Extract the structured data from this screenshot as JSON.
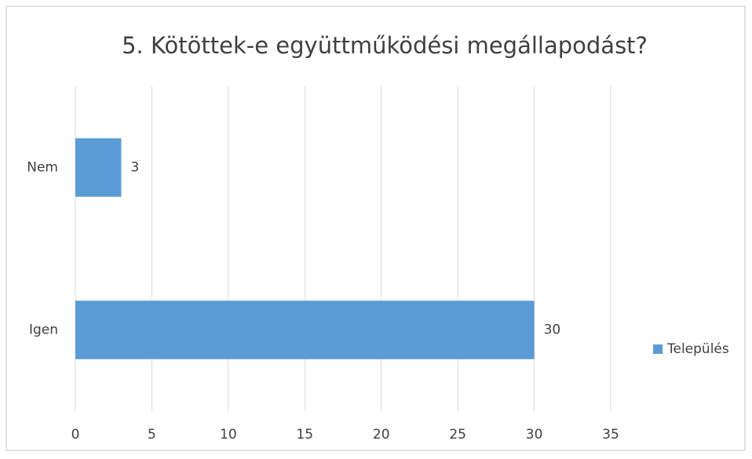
{
  "chart_data": {
    "type": "bar",
    "orientation": "horizontal",
    "title": "5. Kötöttek-e együttműködési megállapodást?",
    "categories": [
      "Nem",
      "Igen"
    ],
    "series": [
      {
        "name": "Település",
        "color": "#5b9bd5",
        "values": [
          3,
          30
        ]
      }
    ],
    "xlim": [
      0,
      35
    ],
    "xticks": [
      0,
      5,
      10,
      15,
      20,
      25,
      30,
      35
    ],
    "grid": true,
    "legend": "right",
    "data_labels": true
  }
}
